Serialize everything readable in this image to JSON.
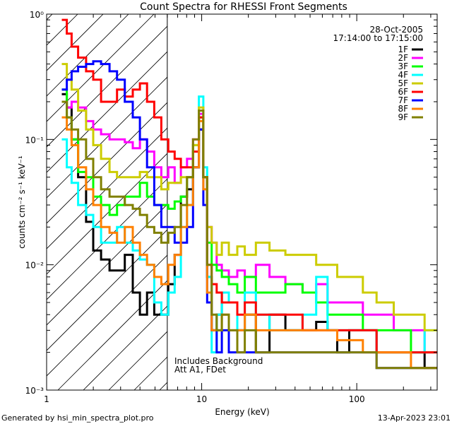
{
  "chart_data": {
    "type": "line",
    "title": "Count Spectra for RHESSI Front Segments",
    "xlabel": "Energy (keV)",
    "ylabel": "counts cm⁻² s⁻¹ keV⁻¹",
    "xscale": "log",
    "yscale": "log",
    "xlim": [
      1,
      330
    ],
    "ylim": [
      0.001,
      1
    ],
    "x_ticks": [
      {
        "value": 1,
        "label": "1"
      },
      {
        "value": 10,
        "label": "10"
      },
      {
        "value": 100,
        "label": "100"
      }
    ],
    "y_ticks": [
      {
        "value": 1,
        "label": "10⁰"
      },
      {
        "value": 0.1,
        "label": "10⁻¹"
      },
      {
        "value": 0.01,
        "label": "10⁻²"
      },
      {
        "value": 0.001,
        "label": "10⁻³"
      }
    ],
    "date": "28-Oct-2005",
    "time_range": "17:14:00 to 17:15:00",
    "annotation_lines": [
      "Includes Background",
      "Att A1, FDet"
    ],
    "hatched_region_upper_keV": 6,
    "footer_left": "Generated by hsi_min_spectra_plot.pro",
    "footer_right": "13-Apr-2023 23:01",
    "energies": [
      1.3,
      1.4,
      1.5,
      1.7,
      1.9,
      2.1,
      2.4,
      2.7,
      3.0,
      3.4,
      3.8,
      4.2,
      4.7,
      5.2,
      5.8,
      6.4,
      7.0,
      7.7,
      8.4,
      9.2,
      10.0,
      10.5,
      11.2,
      12,
      13,
      14,
      16,
      18,
      20,
      25,
      30,
      40,
      50,
      60,
      70,
      80,
      100,
      120,
      150,
      200,
      250,
      300
    ],
    "series": [
      {
        "name": "1F",
        "color": "#000000",
        "values": [
          0.23,
          0.18,
          0.1,
          0.05,
          0.022,
          0.013,
          0.011,
          0.009,
          0.009,
          0.012,
          0.006,
          0.004,
          0.006,
          0.004,
          0.004,
          0.007,
          0.012,
          0.035,
          0.04,
          0.06,
          0.12,
          0.05,
          0.008,
          0.003,
          0.004,
          0.006,
          0.005,
          0.003,
          0.004,
          0.002,
          0.004,
          0.003,
          0.003,
          0.0035,
          0.003,
          0.002,
          0.003,
          0.003,
          0.002,
          0.002,
          0.002,
          0.0015
        ]
      },
      {
        "name": "2F",
        "color": "#ff00ff",
        "values": [
          0.2,
          0.18,
          0.2,
          0.18,
          0.14,
          0.12,
          0.11,
          0.1,
          0.1,
          0.095,
          0.085,
          0.1,
          0.08,
          0.06,
          0.05,
          0.06,
          0.045,
          0.06,
          0.07,
          0.1,
          0.16,
          0.05,
          0.02,
          0.015,
          0.01,
          0.009,
          0.008,
          0.009,
          0.008,
          0.01,
          0.008,
          0.007,
          0.006,
          0.007,
          0.005,
          0.005,
          0.005,
          0.004,
          0.004,
          0.003,
          0.003,
          0.002
        ]
      },
      {
        "name": "3F",
        "color": "#00ff00",
        "values": [
          0.25,
          0.15,
          0.1,
          0.055,
          0.05,
          0.035,
          0.03,
          0.025,
          0.03,
          0.035,
          0.035,
          0.045,
          0.035,
          0.03,
          0.03,
          0.028,
          0.032,
          0.035,
          0.05,
          0.09,
          0.15,
          0.05,
          0.015,
          0.01,
          0.009,
          0.008,
          0.007,
          0.006,
          0.008,
          0.006,
          0.006,
          0.007,
          0.006,
          0.005,
          0.004,
          0.004,
          0.004,
          0.003,
          0.003,
          0.003,
          0.002,
          0.002
        ]
      },
      {
        "name": "4F",
        "color": "#00ffff",
        "values": [
          0.1,
          0.06,
          0.045,
          0.03,
          0.025,
          0.02,
          0.015,
          0.015,
          0.02,
          0.015,
          0.013,
          0.011,
          0.01,
          0.005,
          0.004,
          0.006,
          0.008,
          0.02,
          0.03,
          0.08,
          0.22,
          0.06,
          0.008,
          0.002,
          0.004,
          0.006,
          0.005,
          0.003,
          0.006,
          0.004,
          0.003,
          0.003,
          0.004,
          0.008,
          0.003,
          0.003,
          0.003,
          0.003,
          0.002,
          0.002,
          0.002,
          0.003
        ]
      },
      {
        "name": "5F",
        "color": "#cccc00",
        "values": [
          0.4,
          0.3,
          0.25,
          0.17,
          0.12,
          0.09,
          0.07,
          0.055,
          0.05,
          0.05,
          0.05,
          0.055,
          0.05,
          0.05,
          0.04,
          0.045,
          0.045,
          0.05,
          0.05,
          0.09,
          0.18,
          0.05,
          0.02,
          0.015,
          0.012,
          0.015,
          0.012,
          0.014,
          0.012,
          0.015,
          0.013,
          0.012,
          0.012,
          0.01,
          0.01,
          0.008,
          0.008,
          0.006,
          0.005,
          0.004,
          0.004,
          0.003
        ]
      },
      {
        "name": "6F",
        "color": "#ff0000",
        "values": [
          0.9,
          0.7,
          0.55,
          0.45,
          0.35,
          0.3,
          0.2,
          0.2,
          0.25,
          0.22,
          0.25,
          0.28,
          0.2,
          0.15,
          0.1,
          0.08,
          0.07,
          0.06,
          0.06,
          0.08,
          0.15,
          0.05,
          0.01,
          0.007,
          0.006,
          0.005,
          0.005,
          0.004,
          0.005,
          0.004,
          0.004,
          0.004,
          0.003,
          0.003,
          0.003,
          0.003,
          0.003,
          0.003,
          0.002,
          0.002,
          0.002,
          0.002
        ]
      },
      {
        "name": "7F",
        "color": "#0000ff",
        "values": [
          0.25,
          0.3,
          0.35,
          0.38,
          0.4,
          0.42,
          0.4,
          0.35,
          0.3,
          0.2,
          0.15,
          0.1,
          0.06,
          0.03,
          0.02,
          0.02,
          0.015,
          0.015,
          0.02,
          0.06,
          0.12,
          0.03,
          0.005,
          0.003,
          0.002,
          0.003,
          0.002,
          0.002,
          0.002,
          0.002,
          0.002,
          0.002,
          0.002,
          0.002,
          0.002,
          0.002,
          0.002,
          0.002,
          0.0015,
          0.0015,
          0.0015,
          0.0015
        ]
      },
      {
        "name": "8F",
        "color": "#ff8000",
        "values": [
          0.15,
          0.12,
          0.09,
          0.06,
          0.04,
          0.03,
          0.02,
          0.018,
          0.015,
          0.02,
          0.015,
          0.012,
          0.01,
          0.008,
          0.007,
          0.01,
          0.012,
          0.02,
          0.03,
          0.06,
          0.14,
          0.04,
          0.006,
          0.003,
          0.003,
          0.004,
          0.003,
          0.003,
          0.004,
          0.003,
          0.003,
          0.003,
          0.003,
          0.003,
          0.003,
          0.0025,
          0.0025,
          0.002,
          0.002,
          0.002,
          0.0015,
          0.0015
        ]
      },
      {
        "name": "9F",
        "color": "#808000",
        "values": [
          0.2,
          0.15,
          0.12,
          0.1,
          0.07,
          0.05,
          0.04,
          0.035,
          0.035,
          0.03,
          0.028,
          0.025,
          0.02,
          0.018,
          0.015,
          0.018,
          0.02,
          0.03,
          0.05,
          0.1,
          0.17,
          0.05,
          0.01,
          0.004,
          0.003,
          0.004,
          0.003,
          0.002,
          0.003,
          0.002,
          0.002,
          0.002,
          0.002,
          0.002,
          0.002,
          0.002,
          0.002,
          0.002,
          0.0015,
          0.0015,
          0.0015,
          0.0015
        ]
      }
    ]
  }
}
